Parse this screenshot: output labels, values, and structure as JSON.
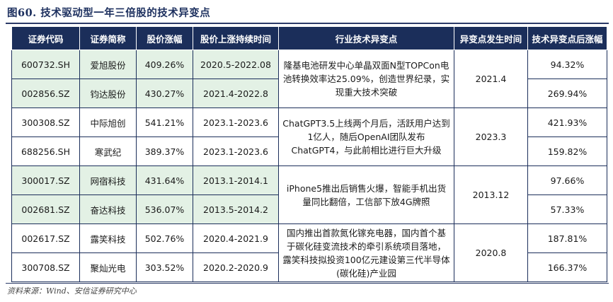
{
  "title": "图60. 技术驱动型一年三倍股的技术异变点",
  "source": "资料来源：Wind、安信证券研究中心",
  "columns": [
    "证券代码",
    "证券简称",
    "股价涨幅",
    "股价上涨持续时间",
    "行业技术异变点",
    "异变点发生时间",
    "技术异变点后涨幅"
  ],
  "groups": [
    {
      "change_point": "隆基电池研发中心单晶双面N型TOPCon电池转换效率达25.09%，创造世界纪录，实现重大技术突破",
      "change_time": "2021.4",
      "rows": [
        {
          "code": "600732.SH",
          "name": "爱旭股份",
          "gain": "409.26%",
          "duration": "2020.5-2022.08",
          "after": "94.32%"
        },
        {
          "code": "002856.SZ",
          "name": "钧达股份",
          "gain": "430.27%",
          "duration": "2021.4-2022.8",
          "after": "269.94%"
        }
      ]
    },
    {
      "change_point": "ChatGPT3.5上线两个月后，活跃用户达到1亿人，随后OpenAI团队发布ChatGPT4，与此前相比进行巨大升级",
      "change_time": "2023.3",
      "rows": [
        {
          "code": "300308.SZ",
          "name": "中际旭创",
          "gain": "541.21%",
          "duration": "2023.1-2023.6",
          "after": "421.93%"
        },
        {
          "code": "688256.SH",
          "name": "寒武纪",
          "gain": "389.37%",
          "duration": "2023.1-2023.6",
          "after": "159.82%"
        }
      ]
    },
    {
      "change_point": "iPhone5推出后销售火爆，智能手机出货量同比翻倍，工信部下放4G牌照",
      "change_time": "2013.12",
      "rows": [
        {
          "code": "300017.SZ",
          "name": "网宿科技",
          "gain": "431.64%",
          "duration": "2013.1-2014.1",
          "after": "97.66%"
        },
        {
          "code": "002681.SZ",
          "name": "奋达科技",
          "gain": "536.07%",
          "duration": "2013.5-2014.2",
          "after": "57.33%"
        }
      ]
    },
    {
      "change_point": "国内推出首款氮化镓充电器，国内首个基于碳化硅变流技术的牵引系统项目落地，露笑科技拟投资100亿元建设第三代半导体(碳化硅)产业园",
      "change_time": "2020.8",
      "rows": [
        {
          "code": "002617.SZ",
          "name": "露笑科技",
          "gain": "502.76%",
          "duration": "2020.4-2021.9",
          "after": "187.81%"
        },
        {
          "code": "300708.SZ",
          "name": "聚灿光电",
          "gain": "303.52%",
          "duration": "2020.2-2020.9",
          "after": "166.37%"
        }
      ]
    }
  ],
  "colors": {
    "header_bg": "#1b2e5a",
    "green_row": "#e3f1e5",
    "border": "#1b2e5a"
  }
}
